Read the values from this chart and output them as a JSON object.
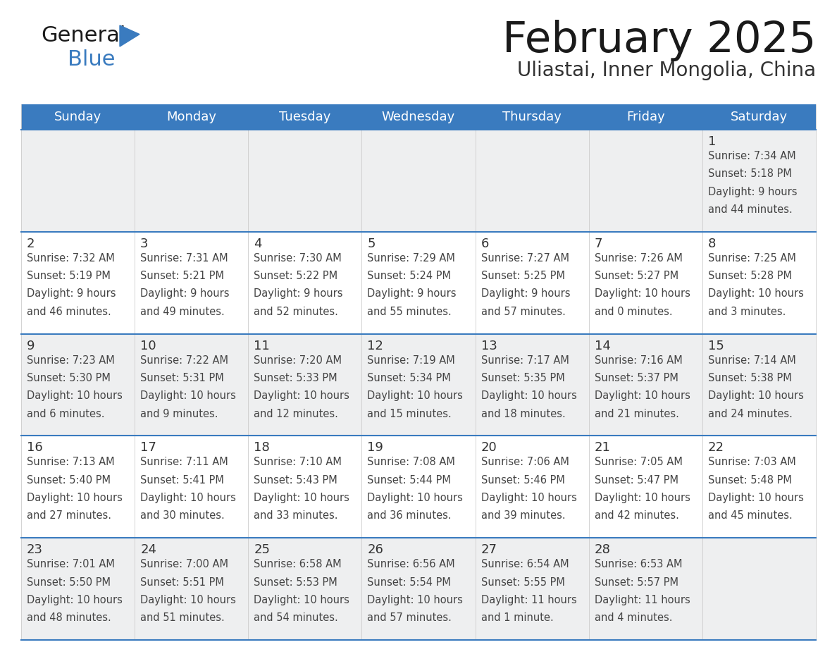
{
  "title": "February 2025",
  "subtitle": "Uliastai, Inner Mongolia, China",
  "header_color": "#3a7bbf",
  "header_text_color": "#ffffff",
  "day_names": [
    "Sunday",
    "Monday",
    "Tuesday",
    "Wednesday",
    "Thursday",
    "Friday",
    "Saturday"
  ],
  "bg_color": "#ffffff",
  "cell_bg_even": "#eeeff0",
  "cell_bg_odd": "#ffffff",
  "date_color": "#333333",
  "info_color": "#444444",
  "separator_color": "#3a7bbf",
  "logo_general_color": "#1a1a1a",
  "logo_blue_color": "#3a7bbf",
  "logo_triangle_color": "#3a7bbf",
  "calendar": [
    [
      null,
      null,
      null,
      null,
      null,
      null,
      {
        "day": 1,
        "sunrise": "7:34 AM",
        "sunset": "5:18 PM",
        "daylight_line1": "Daylight: 9 hours",
        "daylight_line2": "and 44 minutes."
      }
    ],
    [
      {
        "day": 2,
        "sunrise": "7:32 AM",
        "sunset": "5:19 PM",
        "daylight_line1": "Daylight: 9 hours",
        "daylight_line2": "and 46 minutes."
      },
      {
        "day": 3,
        "sunrise": "7:31 AM",
        "sunset": "5:21 PM",
        "daylight_line1": "Daylight: 9 hours",
        "daylight_line2": "and 49 minutes."
      },
      {
        "day": 4,
        "sunrise": "7:30 AM",
        "sunset": "5:22 PM",
        "daylight_line1": "Daylight: 9 hours",
        "daylight_line2": "and 52 minutes."
      },
      {
        "day": 5,
        "sunrise": "7:29 AM",
        "sunset": "5:24 PM",
        "daylight_line1": "Daylight: 9 hours",
        "daylight_line2": "and 55 minutes."
      },
      {
        "day": 6,
        "sunrise": "7:27 AM",
        "sunset": "5:25 PM",
        "daylight_line1": "Daylight: 9 hours",
        "daylight_line2": "and 57 minutes."
      },
      {
        "day": 7,
        "sunrise": "7:26 AM",
        "sunset": "5:27 PM",
        "daylight_line1": "Daylight: 10 hours",
        "daylight_line2": "and 0 minutes."
      },
      {
        "day": 8,
        "sunrise": "7:25 AM",
        "sunset": "5:28 PM",
        "daylight_line1": "Daylight: 10 hours",
        "daylight_line2": "and 3 minutes."
      }
    ],
    [
      {
        "day": 9,
        "sunrise": "7:23 AM",
        "sunset": "5:30 PM",
        "daylight_line1": "Daylight: 10 hours",
        "daylight_line2": "and 6 minutes."
      },
      {
        "day": 10,
        "sunrise": "7:22 AM",
        "sunset": "5:31 PM",
        "daylight_line1": "Daylight: 10 hours",
        "daylight_line2": "and 9 minutes."
      },
      {
        "day": 11,
        "sunrise": "7:20 AM",
        "sunset": "5:33 PM",
        "daylight_line1": "Daylight: 10 hours",
        "daylight_line2": "and 12 minutes."
      },
      {
        "day": 12,
        "sunrise": "7:19 AM",
        "sunset": "5:34 PM",
        "daylight_line1": "Daylight: 10 hours",
        "daylight_line2": "and 15 minutes."
      },
      {
        "day": 13,
        "sunrise": "7:17 AM",
        "sunset": "5:35 PM",
        "daylight_line1": "Daylight: 10 hours",
        "daylight_line2": "and 18 minutes."
      },
      {
        "day": 14,
        "sunrise": "7:16 AM",
        "sunset": "5:37 PM",
        "daylight_line1": "Daylight: 10 hours",
        "daylight_line2": "and 21 minutes."
      },
      {
        "day": 15,
        "sunrise": "7:14 AM",
        "sunset": "5:38 PM",
        "daylight_line1": "Daylight: 10 hours",
        "daylight_line2": "and 24 minutes."
      }
    ],
    [
      {
        "day": 16,
        "sunrise": "7:13 AM",
        "sunset": "5:40 PM",
        "daylight_line1": "Daylight: 10 hours",
        "daylight_line2": "and 27 minutes."
      },
      {
        "day": 17,
        "sunrise": "7:11 AM",
        "sunset": "5:41 PM",
        "daylight_line1": "Daylight: 10 hours",
        "daylight_line2": "and 30 minutes."
      },
      {
        "day": 18,
        "sunrise": "7:10 AM",
        "sunset": "5:43 PM",
        "daylight_line1": "Daylight: 10 hours",
        "daylight_line2": "and 33 minutes."
      },
      {
        "day": 19,
        "sunrise": "7:08 AM",
        "sunset": "5:44 PM",
        "daylight_line1": "Daylight: 10 hours",
        "daylight_line2": "and 36 minutes."
      },
      {
        "day": 20,
        "sunrise": "7:06 AM",
        "sunset": "5:46 PM",
        "daylight_line1": "Daylight: 10 hours",
        "daylight_line2": "and 39 minutes."
      },
      {
        "day": 21,
        "sunrise": "7:05 AM",
        "sunset": "5:47 PM",
        "daylight_line1": "Daylight: 10 hours",
        "daylight_line2": "and 42 minutes."
      },
      {
        "day": 22,
        "sunrise": "7:03 AM",
        "sunset": "5:48 PM",
        "daylight_line1": "Daylight: 10 hours",
        "daylight_line2": "and 45 minutes."
      }
    ],
    [
      {
        "day": 23,
        "sunrise": "7:01 AM",
        "sunset": "5:50 PM",
        "daylight_line1": "Daylight: 10 hours",
        "daylight_line2": "and 48 minutes."
      },
      {
        "day": 24,
        "sunrise": "7:00 AM",
        "sunset": "5:51 PM",
        "daylight_line1": "Daylight: 10 hours",
        "daylight_line2": "and 51 minutes."
      },
      {
        "day": 25,
        "sunrise": "6:58 AM",
        "sunset": "5:53 PM",
        "daylight_line1": "Daylight: 10 hours",
        "daylight_line2": "and 54 minutes."
      },
      {
        "day": 26,
        "sunrise": "6:56 AM",
        "sunset": "5:54 PM",
        "daylight_line1": "Daylight: 10 hours",
        "daylight_line2": "and 57 minutes."
      },
      {
        "day": 27,
        "sunrise": "6:54 AM",
        "sunset": "5:55 PM",
        "daylight_line1": "Daylight: 11 hours",
        "daylight_line2": "and 1 minute."
      },
      {
        "day": 28,
        "sunrise": "6:53 AM",
        "sunset": "5:57 PM",
        "daylight_line1": "Daylight: 11 hours",
        "daylight_line2": "and 4 minutes."
      },
      null
    ]
  ]
}
